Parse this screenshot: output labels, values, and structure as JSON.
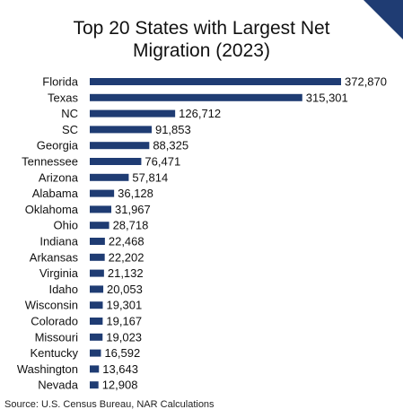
{
  "chart_data": {
    "type": "bar",
    "orientation": "horizontal",
    "title_lines": [
      "Top 20 States with Largest Net",
      "Migration (2023)"
    ],
    "categories": [
      "Florida",
      "Texas",
      "NC",
      "SC",
      "Georgia",
      "Tennessee",
      "Arizona",
      "Alabama",
      "Oklahoma",
      "Ohio",
      "Indiana",
      "Arkansas",
      "Virginia",
      "Idaho",
      "Wisconsin",
      "Colorado",
      "Missouri",
      "Kentucky",
      "Washington",
      "Nevada"
    ],
    "values": [
      372870,
      315301,
      126712,
      91853,
      88325,
      76471,
      57814,
      36128,
      31967,
      28718,
      22468,
      22202,
      21132,
      20053,
      19301,
      19167,
      19023,
      16592,
      13643,
      12908
    ],
    "value_labels": [
      "372,870",
      "315,301",
      "126,712",
      "91,853",
      "88,325",
      "76,471",
      "57,814",
      "36,128",
      "31,967",
      "28,718",
      "22,468",
      "22,202",
      "21,132",
      "20,053",
      "19,301",
      "19,167",
      "19,023",
      "16,592",
      "13,643",
      "12,908"
    ],
    "xlabel": "",
    "ylabel": "",
    "grid": false,
    "bar_color": "#1f3c73",
    "source": "Source: U.S. Census Bureau, NAR Calculations"
  },
  "colors": {
    "bar": "#1f3c73",
    "corner_accent": "#1f3c73",
    "text": "#111111"
  }
}
